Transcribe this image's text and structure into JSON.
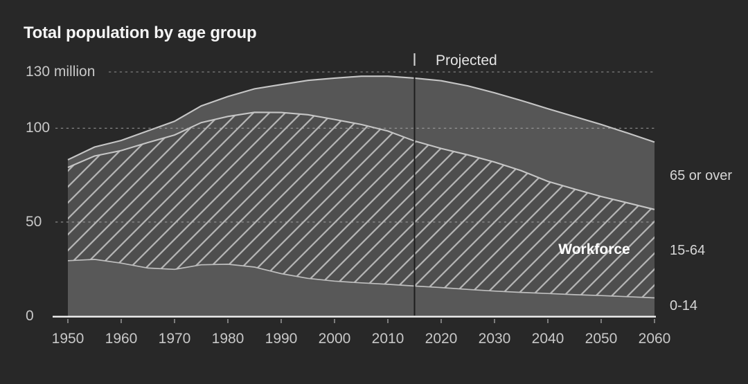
{
  "page": {
    "background": "#282828"
  },
  "header": {
    "title": "Total population by age group"
  },
  "chart_data": {
    "type": "area",
    "stacked": true,
    "title": "Total population by age group",
    "unit": "million",
    "x": [
      1950,
      1955,
      1960,
      1965,
      1970,
      1975,
      1980,
      1985,
      1990,
      1995,
      2000,
      2005,
      2010,
      2015,
      2020,
      2025,
      2030,
      2035,
      2040,
      2045,
      2050,
      2055,
      2060
    ],
    "series": [
      {
        "name": "0-14",
        "fill": "#585858",
        "hatch": false,
        "values": [
          29.4,
          30.1,
          28.1,
          25.5,
          24.8,
          27.2,
          27.5,
          26.0,
          22.5,
          20.0,
          18.5,
          17.6,
          16.8,
          15.9,
          15.1,
          14.1,
          13.2,
          12.5,
          11.9,
          11.3,
          10.8,
          10.2,
          9.6
        ]
      },
      {
        "name": "15-64",
        "fill": "#4e4e4e",
        "hatch": true,
        "values": [
          49.7,
          55.1,
          60.0,
          66.9,
          71.6,
          75.8,
          78.8,
          82.5,
          85.9,
          87.2,
          86.2,
          84.4,
          81.7,
          77.3,
          74.1,
          71.7,
          68.8,
          64.9,
          59.8,
          56.3,
          52.8,
          50.0,
          47.1
        ]
      },
      {
        "name": "65 or over",
        "fill": "#565656",
        "hatch": false,
        "values": [
          4.1,
          4.8,
          5.4,
          6.2,
          7.3,
          8.9,
          10.6,
          12.5,
          14.9,
          18.3,
          22.0,
          25.7,
          29.2,
          33.5,
          36.1,
          36.8,
          36.9,
          37.4,
          38.7,
          38.6,
          38.4,
          37.2,
          35.9
        ]
      }
    ],
    "ylim": [
      0,
      130
    ],
    "yticks": [
      {
        "value": 0,
        "label": "0",
        "grid": false
      },
      {
        "value": 50,
        "label": "50",
        "grid": true
      },
      {
        "value": 100,
        "label": "100",
        "grid": true
      },
      {
        "value": 130,
        "label": "130 million",
        "grid": true
      }
    ],
    "xticks": [
      1950,
      1960,
      1970,
      1980,
      1990,
      2000,
      2010,
      2020,
      2030,
      2040,
      2050,
      2060
    ],
    "grid_on": true,
    "projected": {
      "label": "Projected",
      "start_year": 2015
    },
    "annotations": {
      "workforce": "Workforce"
    },
    "right_labels": [
      {
        "text": "65 or over"
      },
      {
        "text": "15-64"
      },
      {
        "text": "0-14"
      }
    ],
    "colors": {
      "background": "#282828",
      "hatch_line": "#b4b4b4",
      "band_edge": "#c6c6c6",
      "gridline": "#b0b0b0",
      "axis_line": "#f4f4f4",
      "axis_tick": "#9a9a9a",
      "projected_line": "#1d1d1d",
      "projected_tick": "#d0d0d0"
    }
  }
}
